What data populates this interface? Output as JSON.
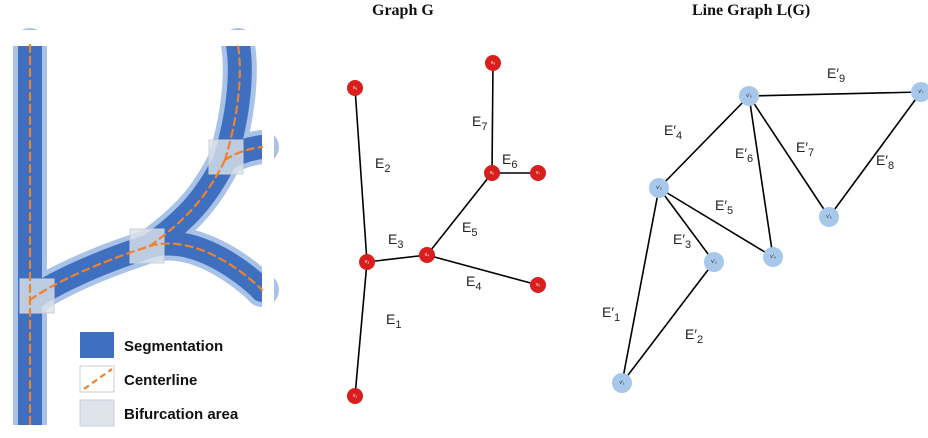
{
  "titles": {
    "graph": "Graph G",
    "line_graph": "Line Graph L(G)"
  },
  "legend": {
    "segmentation": "Segmentation",
    "centerline": "Centerline",
    "bifurcation": "Bifurcation area"
  },
  "colors": {
    "vessel_fill": "#3f6fbf",
    "vessel_edge": "#a9c2e8",
    "centerline": "#f0822c",
    "bifurcation": "#dfe3ea",
    "graph_node": "#d91e1e",
    "line_node": "#a7c8ea",
    "edge": "#000000"
  },
  "graph": {
    "nodes": [
      {
        "id": "v8",
        "label": "v₈"
      },
      {
        "id": "v9",
        "label": "v₉"
      },
      {
        "id": "v6",
        "label": "v₆"
      },
      {
        "id": "v7",
        "label": "v₇"
      },
      {
        "id": "v3",
        "label": "v₃"
      },
      {
        "id": "v4",
        "label": "v₄"
      },
      {
        "id": "v5",
        "label": "v₅"
      },
      {
        "id": "v1",
        "label": "v₁"
      }
    ],
    "edges": [
      {
        "from": "v8",
        "to": "v3",
        "label": "E",
        "sub": "2"
      },
      {
        "from": "v3",
        "to": "v1",
        "label": "E",
        "sub": "1"
      },
      {
        "from": "v3",
        "to": "v4",
        "label": "E",
        "sub": "3"
      },
      {
        "from": "v4",
        "to": "v5",
        "label": "E",
        "sub": "4"
      },
      {
        "from": "v4",
        "to": "v6",
        "label": "E",
        "sub": "5"
      },
      {
        "from": "v6",
        "to": "v9",
        "label": "E",
        "sub": "7"
      },
      {
        "from": "v6",
        "to": "v7",
        "label": "E",
        "sub": "6"
      }
    ]
  },
  "line_graph": {
    "nodes": [
      {
        "id": "L5",
        "label": "v′₅"
      },
      {
        "id": "L7",
        "label": "v′₇"
      },
      {
        "id": "L3",
        "label": "v′₃"
      },
      {
        "id": "L6",
        "label": "v′₆"
      },
      {
        "id": "L4",
        "label": "v′₄"
      },
      {
        "id": "L2",
        "label": "v′₂"
      },
      {
        "id": "L1",
        "label": "v′₁"
      }
    ],
    "edges": [
      {
        "from": "L5",
        "to": "L7",
        "label": "E′",
        "sub": "9"
      },
      {
        "from": "L5",
        "to": "L3",
        "label": "E′",
        "sub": "4"
      },
      {
        "from": "L5",
        "to": "L4",
        "label": "E′",
        "sub": "6"
      },
      {
        "from": "L5",
        "to": "L6",
        "label": "E′",
        "sub": "7"
      },
      {
        "from": "L6",
        "to": "L7",
        "label": "E′",
        "sub": "8"
      },
      {
        "from": "L3",
        "to": "L4",
        "label": "E′",
        "sub": "5"
      },
      {
        "from": "L3",
        "to": "L2",
        "label": "E′",
        "sub": "3"
      },
      {
        "from": "L3",
        "to": "L1",
        "label": "E′",
        "sub": "1"
      },
      {
        "from": "L1",
        "to": "L2",
        "label": "E′",
        "sub": "2"
      }
    ]
  }
}
